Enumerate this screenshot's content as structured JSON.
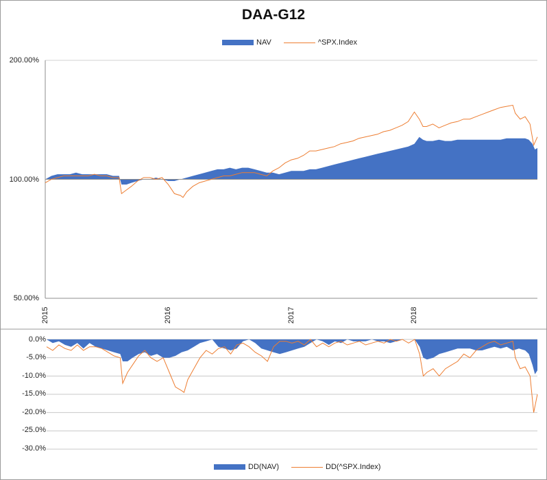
{
  "chart_data": [
    {
      "type": "area",
      "title": "DAA-G12",
      "legend": [
        "NAV",
        "^SPX.Index"
      ],
      "legend_position": "top",
      "y_scale": "log",
      "ylim": [
        0.5,
        2.0
      ],
      "y_ticks": [
        "200.00%",
        "100.00%",
        "50.00%"
      ],
      "x_ticks": [
        "2015",
        "2016",
        "2017",
        "2018"
      ],
      "x_range": [
        2015.0,
        2019.0
      ],
      "colors": {
        "NAV": "#4472c4",
        "^SPX.Index": "#ed7d31"
      },
      "series": [
        {
          "name": "NAV",
          "style": "area",
          "x": [
            2015.0,
            2015.05,
            2015.1,
            2015.15,
            2015.2,
            2015.25,
            2015.3,
            2015.35,
            2015.4,
            2015.45,
            2015.5,
            2015.55,
            2015.6,
            2015.62,
            2015.66,
            2015.7,
            2015.75,
            2015.8,
            2015.85,
            2015.9,
            2015.95,
            2016.0,
            2016.05,
            2016.1,
            2016.15,
            2016.2,
            2016.25,
            2016.3,
            2016.35,
            2016.4,
            2016.45,
            2016.5,
            2016.55,
            2016.6,
            2016.65,
            2016.7,
            2016.75,
            2016.8,
            2016.85,
            2016.9,
            2016.95,
            2017.0,
            2017.05,
            2017.1,
            2017.15,
            2017.2,
            2017.25,
            2017.3,
            2017.35,
            2017.4,
            2017.45,
            2017.5,
            2017.55,
            2017.6,
            2017.65,
            2017.7,
            2017.75,
            2017.8,
            2017.85,
            2017.9,
            2017.95,
            2018.0,
            2018.04,
            2018.07,
            2018.1,
            2018.15,
            2018.2,
            2018.25,
            2018.3,
            2018.35,
            2018.4,
            2018.45,
            2018.5,
            2018.55,
            2018.6,
            2018.65,
            2018.7,
            2018.75,
            2018.8,
            2018.85,
            2018.9,
            2018.93,
            2018.96,
            2018.98,
            2019.0
          ],
          "values": [
            1.0,
            1.02,
            1.03,
            1.03,
            1.03,
            1.04,
            1.03,
            1.03,
            1.03,
            1.03,
            1.03,
            1.02,
            1.02,
            0.97,
            0.97,
            0.98,
            0.99,
            1.0,
            1.0,
            1.01,
            1.0,
            0.99,
            0.99,
            1.0,
            1.01,
            1.02,
            1.03,
            1.04,
            1.05,
            1.06,
            1.06,
            1.07,
            1.06,
            1.07,
            1.07,
            1.06,
            1.05,
            1.04,
            1.04,
            1.03,
            1.04,
            1.05,
            1.05,
            1.05,
            1.06,
            1.06,
            1.07,
            1.08,
            1.09,
            1.1,
            1.11,
            1.12,
            1.13,
            1.14,
            1.15,
            1.16,
            1.17,
            1.18,
            1.19,
            1.2,
            1.21,
            1.23,
            1.28,
            1.26,
            1.25,
            1.25,
            1.26,
            1.25,
            1.25,
            1.26,
            1.26,
            1.26,
            1.26,
            1.26,
            1.26,
            1.26,
            1.26,
            1.27,
            1.27,
            1.27,
            1.27,
            1.26,
            1.23,
            1.19,
            1.2
          ]
        },
        {
          "name": "^SPX.Index",
          "style": "line",
          "x": [
            2015.0,
            2015.05,
            2015.1,
            2015.15,
            2015.2,
            2015.25,
            2015.3,
            2015.35,
            2015.4,
            2015.45,
            2015.5,
            2015.55,
            2015.6,
            2015.62,
            2015.66,
            2015.7,
            2015.75,
            2015.8,
            2015.85,
            2015.9,
            2015.95,
            2016.0,
            2016.05,
            2016.1,
            2016.12,
            2016.15,
            2016.2,
            2016.25,
            2016.3,
            2016.35,
            2016.4,
            2016.45,
            2016.5,
            2016.55,
            2016.6,
            2016.65,
            2016.7,
            2016.75,
            2016.8,
            2016.85,
            2016.9,
            2016.95,
            2017.0,
            2017.05,
            2017.1,
            2017.15,
            2017.2,
            2017.25,
            2017.3,
            2017.35,
            2017.4,
            2017.45,
            2017.5,
            2017.55,
            2017.6,
            2017.65,
            2017.7,
            2017.75,
            2017.8,
            2017.85,
            2017.9,
            2017.95,
            2018.0,
            2018.04,
            2018.07,
            2018.1,
            2018.15,
            2018.2,
            2018.25,
            2018.3,
            2018.35,
            2018.4,
            2018.45,
            2018.5,
            2018.55,
            2018.6,
            2018.65,
            2018.7,
            2018.75,
            2018.8,
            2018.82,
            2018.86,
            2018.9,
            2018.94,
            2018.97,
            2019.0
          ],
          "values": [
            0.98,
            1.0,
            1.01,
            1.02,
            1.02,
            1.02,
            1.02,
            1.02,
            1.03,
            1.02,
            1.02,
            1.01,
            1.01,
            0.92,
            0.94,
            0.96,
            0.99,
            1.01,
            1.01,
            1.0,
            1.01,
            0.97,
            0.92,
            0.91,
            0.9,
            0.93,
            0.96,
            0.98,
            0.99,
            1.0,
            1.01,
            1.02,
            1.02,
            1.03,
            1.04,
            1.04,
            1.04,
            1.03,
            1.02,
            1.05,
            1.07,
            1.1,
            1.12,
            1.13,
            1.15,
            1.18,
            1.18,
            1.19,
            1.2,
            1.21,
            1.23,
            1.24,
            1.25,
            1.27,
            1.28,
            1.29,
            1.3,
            1.32,
            1.33,
            1.35,
            1.37,
            1.4,
            1.48,
            1.42,
            1.36,
            1.36,
            1.38,
            1.35,
            1.37,
            1.39,
            1.4,
            1.42,
            1.42,
            1.44,
            1.46,
            1.48,
            1.5,
            1.52,
            1.53,
            1.54,
            1.47,
            1.42,
            1.44,
            1.38,
            1.22,
            1.28
          ]
        }
      ]
    },
    {
      "type": "area",
      "title": "",
      "legend": [
        "DD(NAV)",
        "DD(^SPX.Index)"
      ],
      "legend_position": "bottom",
      "ylim": [
        -30.0,
        0.0
      ],
      "y_ticks": [
        "0.0%",
        "-5.0%",
        "-10.0%",
        "-15.0%",
        "-20.0%",
        "-25.0%",
        "-30.0%"
      ],
      "x_range": [
        2015.0,
        2019.0
      ],
      "colors": {
        "DD(NAV)": "#4472c4",
        "DD(^SPX.Index)": "#ed7d31"
      },
      "series": [
        {
          "name": "DD(NAV)",
          "style": "area",
          "x": [
            2015.0,
            2015.05,
            2015.1,
            2015.15,
            2015.2,
            2015.25,
            2015.3,
            2015.35,
            2015.4,
            2015.45,
            2015.5,
            2015.55,
            2015.6,
            2015.62,
            2015.66,
            2015.7,
            2015.75,
            2015.8,
            2015.85,
            2015.9,
            2015.95,
            2016.0,
            2016.05,
            2016.1,
            2016.15,
            2016.2,
            2016.25,
            2016.3,
            2016.35,
            2016.4,
            2016.45,
            2016.5,
            2016.55,
            2016.6,
            2016.65,
            2016.7,
            2016.75,
            2016.8,
            2016.85,
            2016.9,
            2016.95,
            2017.0,
            2017.05,
            2017.1,
            2017.15,
            2017.2,
            2017.25,
            2017.3,
            2017.35,
            2017.4,
            2017.45,
            2017.5,
            2017.55,
            2017.6,
            2017.65,
            2017.7,
            2017.75,
            2017.8,
            2017.85,
            2017.9,
            2017.95,
            2018.0,
            2018.04,
            2018.07,
            2018.1,
            2018.15,
            2018.2,
            2018.25,
            2018.3,
            2018.35,
            2018.4,
            2018.45,
            2018.5,
            2018.55,
            2018.6,
            2018.65,
            2018.7,
            2018.75,
            2018.8,
            2018.85,
            2018.9,
            2018.93,
            2018.96,
            2018.98,
            2019.0
          ],
          "values": [
            0.0,
            -1.0,
            -0.5,
            -1.5,
            -2.0,
            -1.0,
            -2.5,
            -1.0,
            -2.0,
            -2.5,
            -3.0,
            -3.5,
            -4.0,
            -6.0,
            -6.0,
            -5.0,
            -4.0,
            -3.5,
            -4.5,
            -4.0,
            -5.0,
            -5.0,
            -4.5,
            -3.5,
            -3.0,
            -2.0,
            -1.0,
            -0.5,
            0.0,
            -2.0,
            -2.5,
            -3.0,
            -2.5,
            -0.5,
            0.0,
            -1.0,
            -2.5,
            -3.0,
            -3.5,
            -4.0,
            -3.5,
            -3.0,
            -2.5,
            -2.0,
            -1.0,
            0.0,
            -0.5,
            -1.5,
            -0.5,
            -1.0,
            0.0,
            -0.5,
            -0.5,
            -0.5,
            0.0,
            -0.5,
            -0.5,
            -1.0,
            -0.5,
            0.0,
            0.0,
            0.0,
            -2.0,
            -5.0,
            -5.5,
            -5.0,
            -4.0,
            -3.5,
            -3.0,
            -2.5,
            -2.5,
            -2.5,
            -3.0,
            -3.0,
            -2.5,
            -2.0,
            -2.5,
            -2.0,
            -3.0,
            -2.5,
            -3.0,
            -4.0,
            -7.0,
            -9.5,
            -8.5
          ]
        },
        {
          "name": "DD(^SPX.Index)",
          "style": "line",
          "x": [
            2015.0,
            2015.05,
            2015.1,
            2015.15,
            2015.2,
            2015.25,
            2015.3,
            2015.35,
            2015.4,
            2015.45,
            2015.5,
            2015.55,
            2015.6,
            2015.62,
            2015.66,
            2015.7,
            2015.75,
            2015.8,
            2015.85,
            2015.9,
            2015.95,
            2016.0,
            2016.05,
            2016.1,
            2016.12,
            2016.15,
            2016.2,
            2016.25,
            2016.3,
            2016.35,
            2016.4,
            2016.45,
            2016.5,
            2016.55,
            2016.6,
            2016.65,
            2016.7,
            2016.75,
            2016.8,
            2016.85,
            2016.9,
            2016.95,
            2017.0,
            2017.05,
            2017.1,
            2017.15,
            2017.2,
            2017.25,
            2017.3,
            2017.35,
            2017.4,
            2017.45,
            2017.5,
            2017.55,
            2017.6,
            2017.65,
            2017.7,
            2017.75,
            2017.8,
            2017.85,
            2017.9,
            2017.95,
            2018.0,
            2018.04,
            2018.07,
            2018.1,
            2018.15,
            2018.2,
            2018.25,
            2018.3,
            2018.35,
            2018.4,
            2018.45,
            2018.5,
            2018.55,
            2018.6,
            2018.65,
            2018.7,
            2018.75,
            2018.8,
            2018.82,
            2018.86,
            2018.9,
            2018.94,
            2018.97,
            2019.0
          ],
          "values": [
            -2.0,
            -3.0,
            -1.5,
            -2.5,
            -3.0,
            -1.5,
            -3.0,
            -2.0,
            -2.0,
            -2.5,
            -3.5,
            -4.5,
            -5.0,
            -12.0,
            -9.0,
            -7.0,
            -4.5,
            -3.0,
            -5.0,
            -6.0,
            -5.0,
            -9.0,
            -13.0,
            -14.0,
            -14.5,
            -11.0,
            -8.0,
            -5.0,
            -3.0,
            -4.0,
            -2.5,
            -2.0,
            -4.0,
            -1.5,
            -1.0,
            -2.0,
            -3.5,
            -4.5,
            -6.0,
            -2.0,
            -0.5,
            -0.5,
            -1.0,
            -0.5,
            -1.5,
            0.0,
            -2.0,
            -1.0,
            -2.0,
            -1.0,
            -0.5,
            -1.5,
            -1.0,
            -0.5,
            -1.5,
            -1.0,
            -0.5,
            -1.0,
            0.0,
            -0.5,
            0.0,
            -1.0,
            0.0,
            -4.0,
            -10.0,
            -9.0,
            -8.0,
            -10.0,
            -8.0,
            -7.0,
            -6.0,
            -4.0,
            -5.0,
            -3.0,
            -2.0,
            -1.0,
            -0.5,
            -1.5,
            -1.0,
            -0.5,
            -5.0,
            -8.0,
            -7.5,
            -10.0,
            -20.0,
            -15.0
          ]
        }
      ]
    }
  ]
}
